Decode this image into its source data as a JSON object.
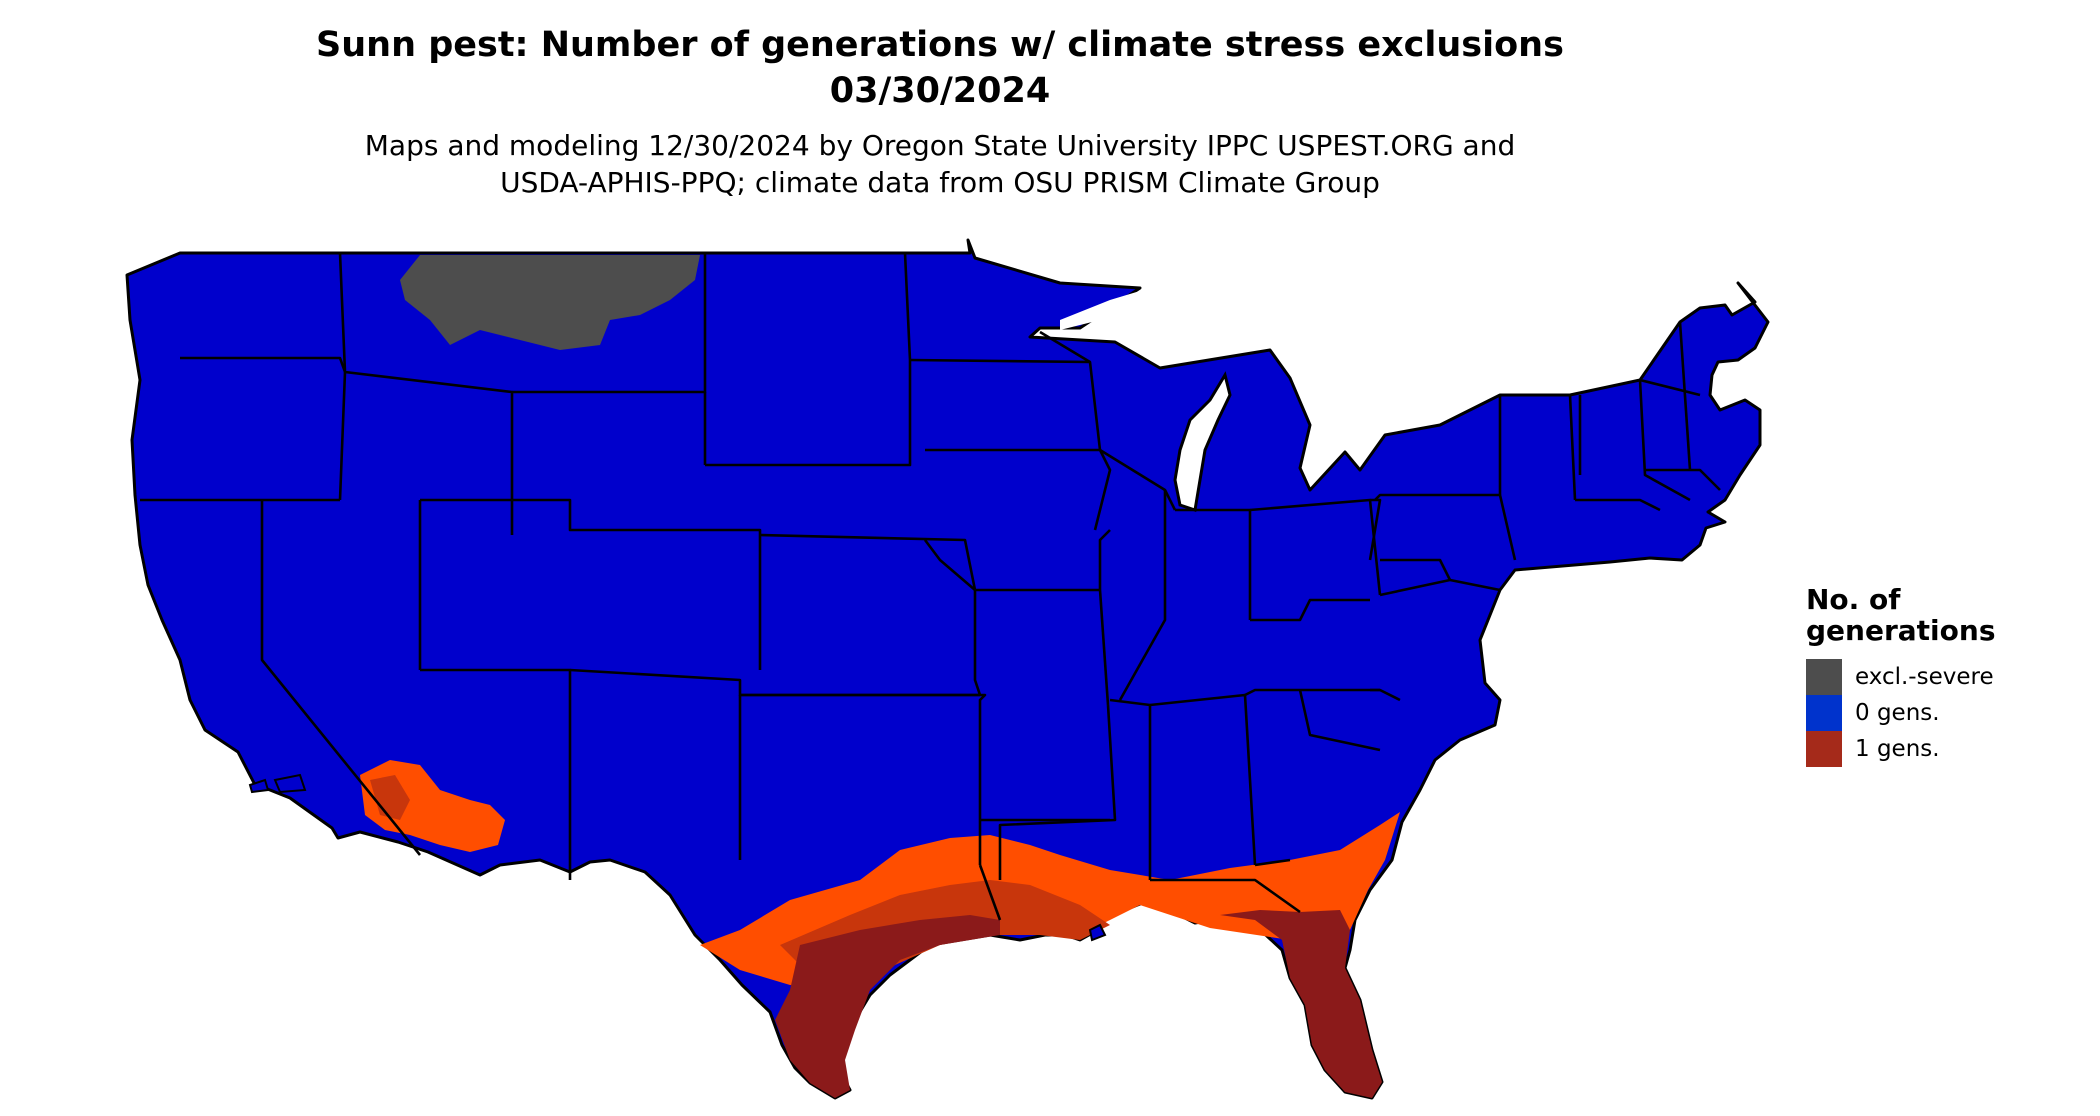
{
  "title": {
    "line1": "Sunn pest: Number of generations w/ climate stress exclusions",
    "line2": "03/30/2024"
  },
  "subtitle": {
    "line1": "Maps and modeling 12/30/2024 by Oregon State University IPPC USPEST.ORG and",
    "line2": "USDA-APHIS-PPQ; climate data from OSU PRISM Climate Group"
  },
  "legend": {
    "title_line1": "No. of",
    "title_line2": "generations",
    "items": [
      {
        "label": "excl.-severe",
        "color": "#4d4d4d"
      },
      {
        "label": "0 gens.",
        "color": "#0033cc"
      },
      {
        "label": "1 gens.",
        "color": "#a52a1a"
      }
    ]
  },
  "map_colors": {
    "zero_gens": "#0000cc",
    "one_gen_light": "#ff4e00",
    "one_gen_mid": "#c8360c",
    "one_gen_dark": "#8b1a1a",
    "excluded": "#4d4d4d",
    "borders": "#000000"
  }
}
